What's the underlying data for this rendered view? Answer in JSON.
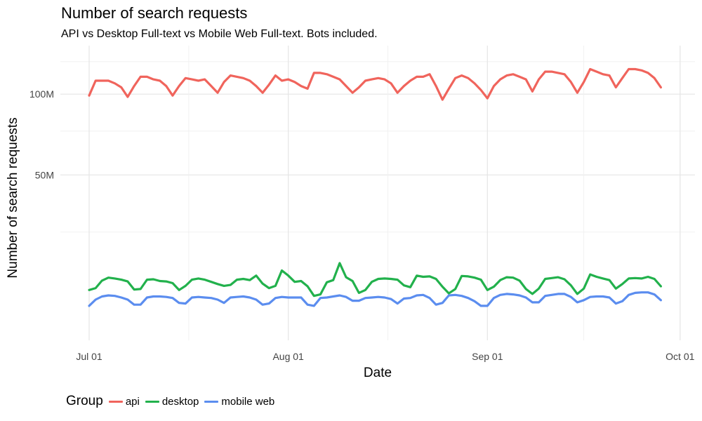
{
  "chart_data": {
    "type": "line",
    "title": "Number of search requests",
    "subtitle": "API vs Desktop Full-text vs Mobile Web Full-text. Bots included.",
    "xlabel": "Date",
    "ylabel": "Number of search requests",
    "x_start": "2016-07-01",
    "x_ticks": [
      "Jul 01",
      "Aug 01",
      "Sep 01",
      "Oct 01"
    ],
    "y_ticks": [
      "50M",
      "100M"
    ],
    "legend_title": "Group",
    "legend_position": "bottom",
    "grid": true,
    "series": [
      {
        "name": "api",
        "color": "#F0645C",
        "values": [
          99,
          110,
          110,
          110,
          108,
          105,
          98,
          106,
          113,
          113,
          111,
          110,
          106,
          99,
          106,
          112,
          111,
          110,
          111,
          106,
          101,
          109,
          114,
          113,
          112,
          110,
          106,
          101,
          107,
          114,
          110,
          111,
          109,
          106,
          104,
          116,
          116,
          115,
          113,
          111,
          106,
          101,
          105,
          110,
          111,
          112,
          111,
          108,
          101,
          106,
          110,
          113,
          113,
          115,
          106,
          96,
          104,
          112,
          114,
          112,
          108,
          103,
          97,
          106,
          111,
          114,
          115,
          113,
          111,
          102,
          111,
          117,
          117,
          116,
          115,
          109,
          101,
          109,
          119,
          117,
          115,
          114,
          105,
          112,
          119,
          119,
          118,
          116,
          112,
          105
        ]
      },
      {
        "name": "desktop",
        "color": "#22B14C",
        "values": [
          8.4,
          8.8,
          10.5,
          11.2,
          11,
          10.7,
          10.3,
          8.5,
          8.6,
          10.7,
          10.8,
          10.4,
          10.3,
          9.9,
          8.4,
          9.3,
          10.7,
          11,
          10.7,
          10.2,
          9.7,
          9.3,
          9.5,
          10.7,
          10.9,
          10.6,
          11.7,
          9.8,
          8.8,
          9.3,
          13,
          11.7,
          10.2,
          10.4,
          9.2,
          7.2,
          7.5,
          10.1,
          10.6,
          15,
          11.3,
          10.4,
          7.8,
          8.4,
          10.2,
          10.9,
          11,
          10.9,
          10.7,
          9.4,
          9,
          11.7,
          11.4,
          11.5,
          10.9,
          9.1,
          7.7,
          8.6,
          11.6,
          11.5,
          11.2,
          10.7,
          8.4,
          9.1,
          10.6,
          11.3,
          11.2,
          10.5,
          8.6,
          7.6,
          8.7,
          10.9,
          11.1,
          11.3,
          10.8,
          9.4,
          7.6,
          8.7,
          12,
          11.4,
          11,
          10.6,
          8.7,
          9.7,
          11,
          11.1,
          11,
          11.4,
          10.9,
          9.2
        ]
      },
      {
        "name": "mobile web",
        "color": "#5B8DEF",
        "values": [
          5.4,
          6.5,
          7.1,
          7.3,
          7.2,
          6.9,
          6.5,
          5.6,
          5.6,
          6.9,
          7.1,
          7.1,
          7,
          6.8,
          5.9,
          5.8,
          6.9,
          7,
          6.9,
          6.8,
          6.5,
          5.9,
          6.9,
          7,
          7.1,
          6.9,
          6.5,
          5.6,
          5.8,
          6.8,
          7,
          6.9,
          6.9,
          6.9,
          5.6,
          5.4,
          6.8,
          6.9,
          7.1,
          7.3,
          7,
          6.3,
          6.3,
          6.8,
          6.9,
          7,
          6.9,
          6.6,
          5.8,
          6.7,
          6.8,
          7.3,
          7.4,
          6.8,
          5.6,
          5.9,
          7.3,
          7.4,
          7.2,
          6.8,
          6.2,
          5.4,
          5.4,
          6.8,
          7.4,
          7.6,
          7.5,
          7.3,
          6.9,
          6,
          6,
          7.2,
          7.4,
          7.6,
          7.6,
          7,
          6,
          6.4,
          7,
          7.1,
          7.1,
          6.9,
          5.8,
          6.2,
          7.4,
          7.8,
          7.9,
          7.9,
          7.5,
          6.4
        ]
      }
    ]
  }
}
